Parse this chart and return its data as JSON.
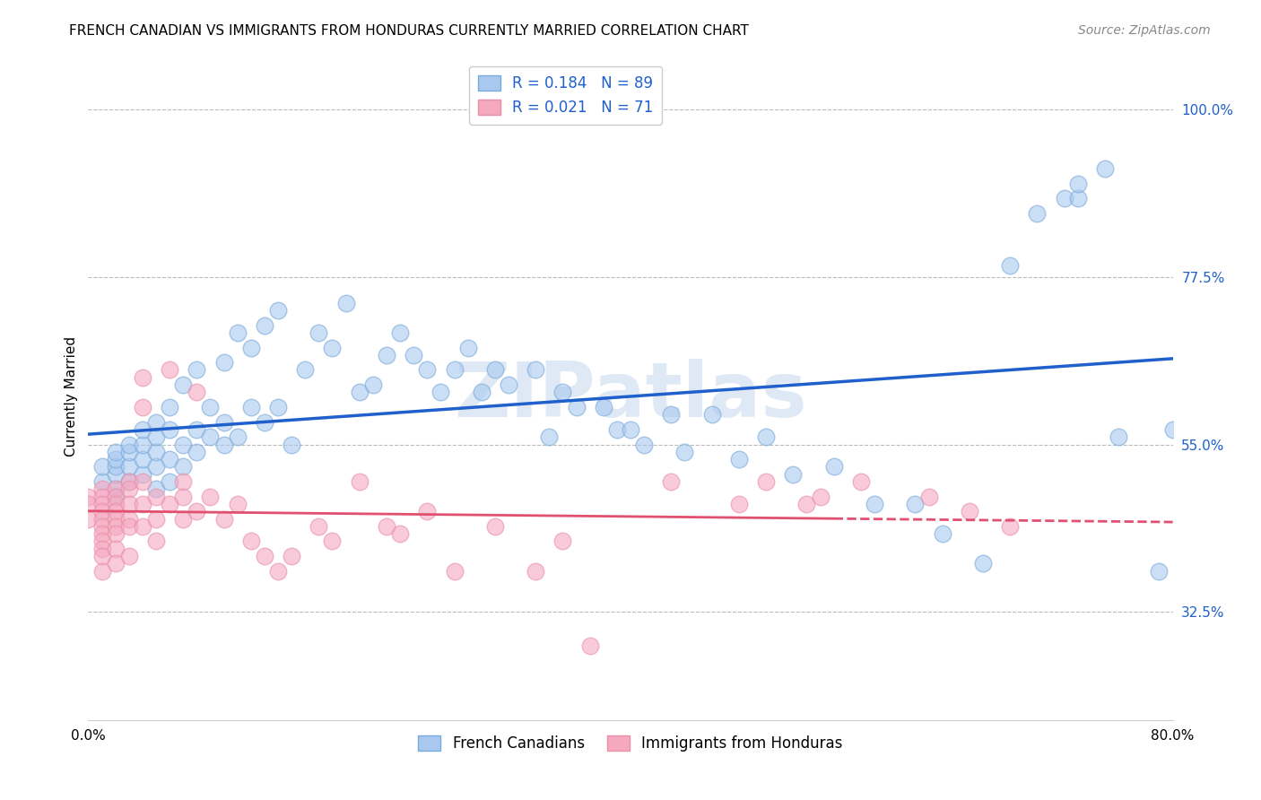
{
  "title": "FRENCH CANADIAN VS IMMIGRANTS FROM HONDURAS CURRENTLY MARRIED CORRELATION CHART",
  "source": "Source: ZipAtlas.com",
  "ylabel": "Currently Married",
  "y_tick_labels": [
    "32.5%",
    "55.0%",
    "77.5%",
    "100.0%"
  ],
  "y_tick_values": [
    0.325,
    0.55,
    0.775,
    1.0
  ],
  "x_tick_labels": [
    "0.0%",
    "",
    "",
    "",
    "80.0%"
  ],
  "x_tick_values": [
    0.0,
    0.2,
    0.4,
    0.6,
    0.8
  ],
  "x_min": 0.0,
  "x_max": 0.8,
  "y_min": 0.18,
  "y_max": 1.05,
  "legend_label_blue": "R = 0.184   N = 89",
  "legend_label_pink": "R = 0.021   N = 71",
  "legend_labels_bottom": [
    "French Canadians",
    "Immigrants from Honduras"
  ],
  "blue_color": "#A8C8F0",
  "pink_color": "#F5A8C0",
  "blue_edge_color": "#7AAAD8",
  "pink_edge_color": "#E890A8",
  "blue_line_color": "#2060CC",
  "pink_line_color": "#E05070",
  "blue_scatter_x": [
    0.01,
    0.01,
    0.02,
    0.02,
    0.02,
    0.02,
    0.02,
    0.02,
    0.03,
    0.03,
    0.03,
    0.03,
    0.04,
    0.04,
    0.04,
    0.04,
    0.05,
    0.05,
    0.05,
    0.05,
    0.05,
    0.06,
    0.06,
    0.06,
    0.06,
    0.07,
    0.07,
    0.07,
    0.08,
    0.08,
    0.08,
    0.09,
    0.09,
    0.1,
    0.1,
    0.1,
    0.11,
    0.11,
    0.12,
    0.12,
    0.13,
    0.13,
    0.14,
    0.14,
    0.15,
    0.16,
    0.17,
    0.18,
    0.19,
    0.2,
    0.21,
    0.22,
    0.23,
    0.24,
    0.25,
    0.26,
    0.27,
    0.28,
    0.29,
    0.3,
    0.31,
    0.33,
    0.34,
    0.35,
    0.36,
    0.38,
    0.39,
    0.4,
    0.41,
    0.43,
    0.44,
    0.46,
    0.48,
    0.5,
    0.52,
    0.55,
    0.58,
    0.61,
    0.63,
    0.66,
    0.68,
    0.7,
    0.72,
    0.73,
    0.73,
    0.75,
    0.76,
    0.79,
    0.8
  ],
  "blue_scatter_y": [
    0.5,
    0.52,
    0.49,
    0.51,
    0.52,
    0.53,
    0.54,
    0.48,
    0.5,
    0.52,
    0.54,
    0.55,
    0.51,
    0.53,
    0.55,
    0.57,
    0.49,
    0.52,
    0.54,
    0.56,
    0.58,
    0.5,
    0.53,
    0.57,
    0.6,
    0.52,
    0.55,
    0.63,
    0.54,
    0.57,
    0.65,
    0.56,
    0.6,
    0.55,
    0.58,
    0.66,
    0.56,
    0.7,
    0.6,
    0.68,
    0.58,
    0.71,
    0.6,
    0.73,
    0.55,
    0.65,
    0.7,
    0.68,
    0.74,
    0.62,
    0.63,
    0.67,
    0.7,
    0.67,
    0.65,
    0.62,
    0.65,
    0.68,
    0.62,
    0.65,
    0.63,
    0.65,
    0.56,
    0.62,
    0.6,
    0.6,
    0.57,
    0.57,
    0.55,
    0.59,
    0.54,
    0.59,
    0.53,
    0.56,
    0.51,
    0.52,
    0.47,
    0.47,
    0.43,
    0.39,
    0.79,
    0.86,
    0.88,
    0.88,
    0.9,
    0.92,
    0.56,
    0.38,
    0.57
  ],
  "pink_scatter_x": [
    0.0,
    0.0,
    0.0,
    0.01,
    0.01,
    0.01,
    0.01,
    0.01,
    0.01,
    0.01,
    0.01,
    0.01,
    0.01,
    0.01,
    0.02,
    0.02,
    0.02,
    0.02,
    0.02,
    0.02,
    0.02,
    0.02,
    0.02,
    0.03,
    0.03,
    0.03,
    0.03,
    0.03,
    0.03,
    0.04,
    0.04,
    0.04,
    0.04,
    0.04,
    0.05,
    0.05,
    0.05,
    0.06,
    0.06,
    0.07,
    0.07,
    0.07,
    0.08,
    0.08,
    0.09,
    0.1,
    0.11,
    0.12,
    0.13,
    0.14,
    0.15,
    0.17,
    0.18,
    0.2,
    0.22,
    0.23,
    0.25,
    0.27,
    0.3,
    0.33,
    0.35,
    0.37,
    0.43,
    0.48,
    0.5,
    0.53,
    0.54,
    0.57,
    0.62,
    0.65,
    0.68
  ],
  "pink_scatter_y": [
    0.48,
    0.47,
    0.45,
    0.49,
    0.48,
    0.47,
    0.46,
    0.45,
    0.44,
    0.43,
    0.42,
    0.41,
    0.4,
    0.38,
    0.49,
    0.48,
    0.47,
    0.46,
    0.45,
    0.44,
    0.43,
    0.41,
    0.39,
    0.5,
    0.49,
    0.47,
    0.45,
    0.44,
    0.4,
    0.64,
    0.6,
    0.5,
    0.47,
    0.44,
    0.48,
    0.45,
    0.42,
    0.65,
    0.47,
    0.5,
    0.48,
    0.45,
    0.62,
    0.46,
    0.48,
    0.45,
    0.47,
    0.42,
    0.4,
    0.38,
    0.4,
    0.44,
    0.42,
    0.5,
    0.44,
    0.43,
    0.46,
    0.38,
    0.44,
    0.38,
    0.42,
    0.28,
    0.5,
    0.47,
    0.5,
    0.47,
    0.48,
    0.5,
    0.48,
    0.46,
    0.44
  ],
  "watermark": "ZIPatlas",
  "title_fontsize": 11,
  "axis_label_fontsize": 11,
  "tick_label_fontsize": 11,
  "legend_fontsize": 12,
  "source_fontsize": 10
}
